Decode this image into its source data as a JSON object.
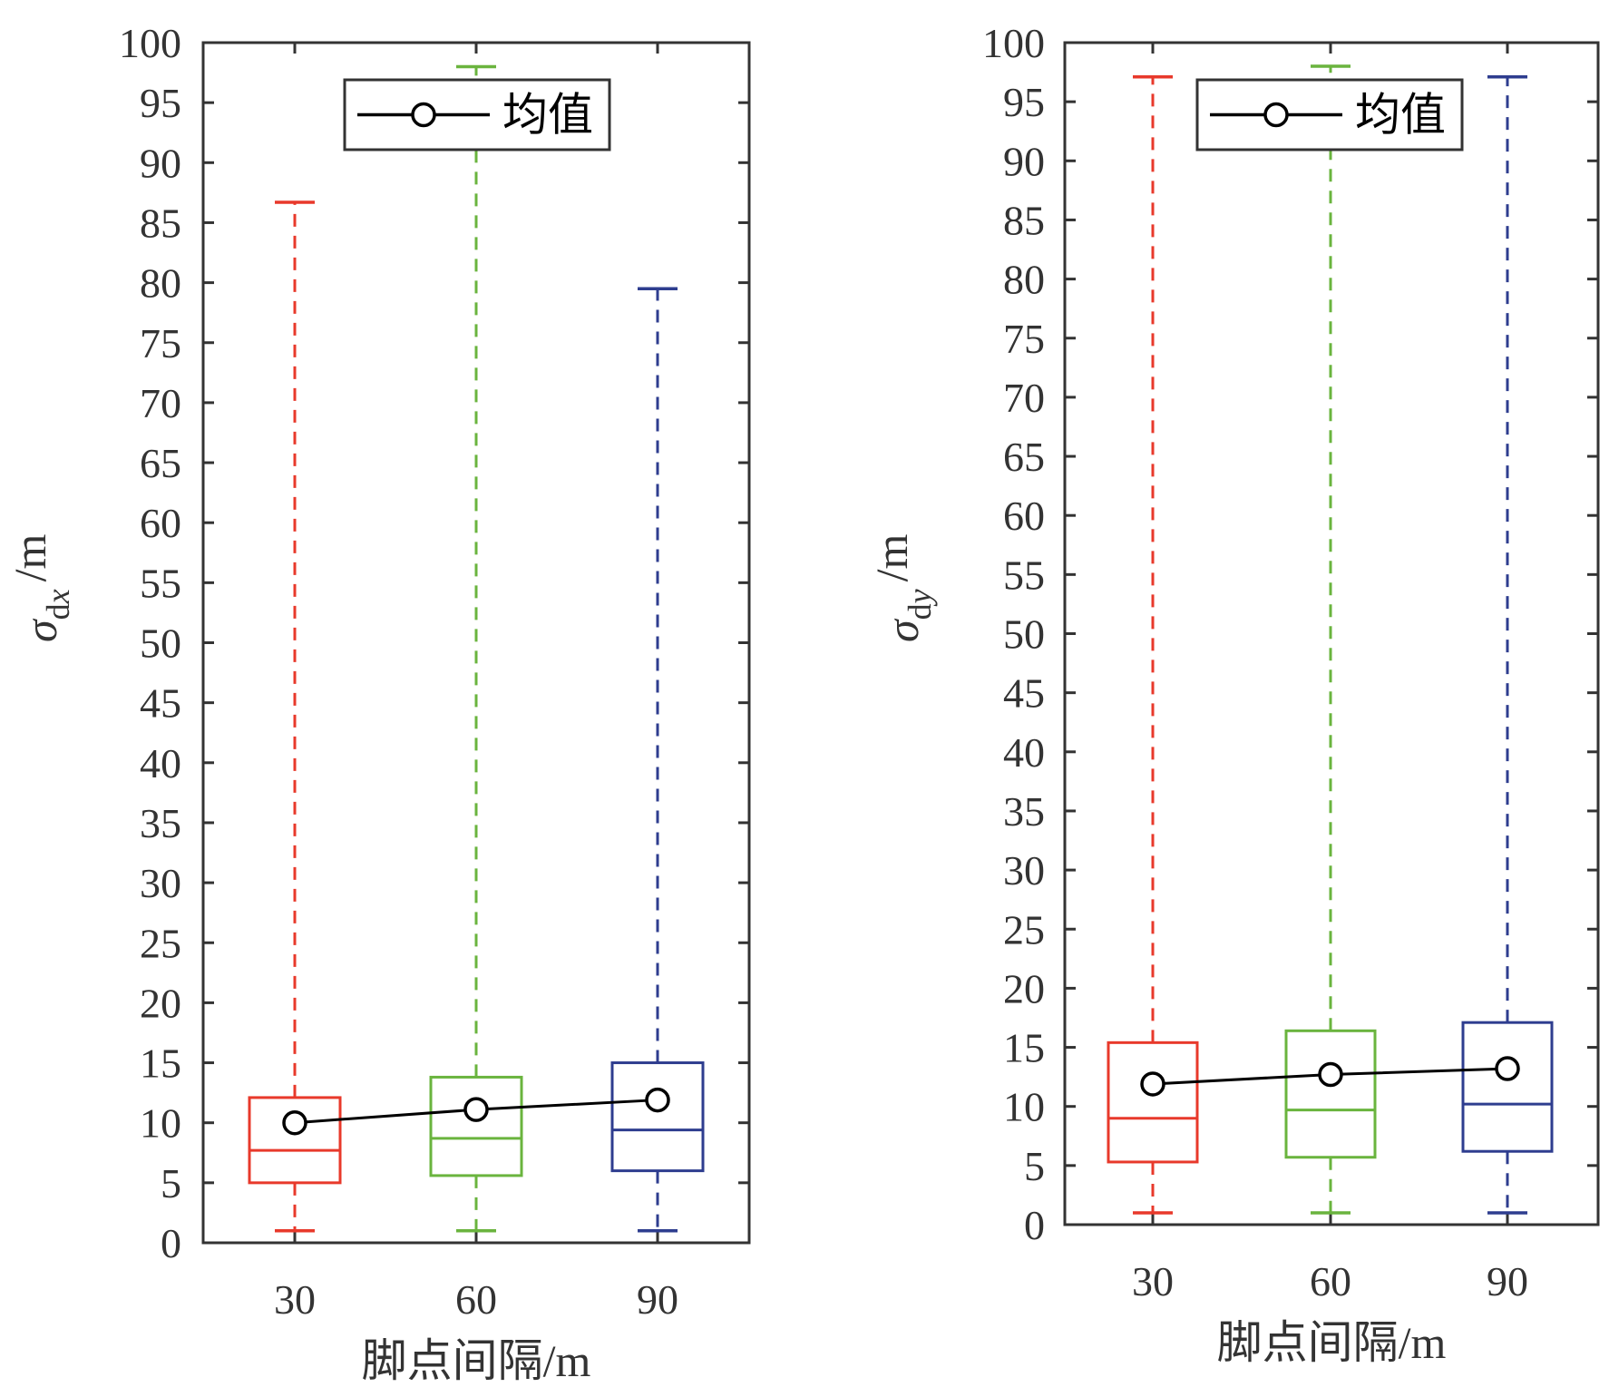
{
  "chart_data": [
    {
      "type": "box",
      "xlabel": "脚点间隔/m",
      "ylabel": {
        "symbol": "σ",
        "subscript": "d",
        "subscript_var": "x",
        "unit": "/m"
      },
      "ylim": [
        0,
        100
      ],
      "ytick_step": 5,
      "categories": [
        "30",
        "60",
        "90"
      ],
      "colors": [
        "#e8392b",
        "#6ab43e",
        "#2e3d8f"
      ],
      "boxes": [
        {
          "category": "30",
          "whisker_low": 1,
          "q1": 5,
          "median": 7.7,
          "q3": 12.1,
          "whisker_high": 86.7
        },
        {
          "category": "60",
          "whisker_low": 1,
          "q1": 5.6,
          "median": 8.7,
          "q3": 13.8,
          "whisker_high": 98
        },
        {
          "category": "90",
          "whisker_low": 1,
          "q1": 6,
          "median": 9.4,
          "q3": 15,
          "whisker_high": 79.5
        }
      ],
      "mean_series": {
        "name": "均值",
        "values": [
          10,
          11.1,
          11.9
        ]
      },
      "legend": {
        "placement": "top-center",
        "label": "均值"
      }
    },
    {
      "type": "box",
      "xlabel": "脚点间隔/m",
      "ylabel": {
        "symbol": "σ",
        "subscript": "d",
        "subscript_var": "y",
        "unit": "/m"
      },
      "ylim": [
        0,
        100
      ],
      "ytick_step": 5,
      "categories": [
        "30",
        "60",
        "90"
      ],
      "colors": [
        "#e8392b",
        "#6ab43e",
        "#2e3d8f"
      ],
      "boxes": [
        {
          "category": "30",
          "whisker_low": 1,
          "q1": 5.3,
          "median": 9,
          "q3": 15.4,
          "whisker_high": 97.1
        },
        {
          "category": "60",
          "whisker_low": 1,
          "q1": 5.7,
          "median": 9.7,
          "q3": 16.4,
          "whisker_high": 98
        },
        {
          "category": "90",
          "whisker_low": 1,
          "q1": 6.2,
          "median": 10.2,
          "q3": 17.1,
          "whisker_high": 97.1
        }
      ],
      "mean_series": {
        "name": "均值",
        "values": [
          11.9,
          12.7,
          13.2
        ]
      },
      "legend": {
        "placement": "top-center",
        "label": "均值"
      }
    }
  ]
}
